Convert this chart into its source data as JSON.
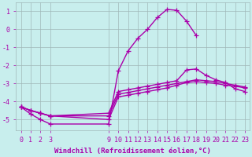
{
  "background_color": "#c8eeed",
  "grid_color": "#a0b8b8",
  "line_color": "#aa00aa",
  "xlabel": "Windchill (Refroidissement éolien,°C)",
  "xlim": [
    -0.5,
    23.5
  ],
  "ylim": [
    -5.6,
    1.5
  ],
  "yticks": [
    1,
    0,
    -1,
    -2,
    -3,
    -4,
    -5
  ],
  "xticks": [
    0,
    1,
    2,
    3,
    9,
    10,
    11,
    12,
    13,
    14,
    15,
    16,
    17,
    18,
    19,
    20,
    21,
    22,
    23
  ],
  "line_peak_x": [
    0,
    1,
    2,
    3,
    9,
    10,
    11,
    12,
    13,
    14,
    15,
    16,
    17,
    18
  ],
  "line_peak_y": [
    -4.3,
    -4.7,
    -5.0,
    -5.25,
    -5.25,
    -2.3,
    -1.2,
    -0.5,
    0.0,
    0.65,
    1.1,
    1.05,
    0.45,
    -0.35
  ],
  "line_upper_x": [
    0,
    1,
    2,
    3,
    9,
    10,
    11,
    12,
    13,
    14,
    15,
    16,
    17,
    18,
    19,
    20,
    21,
    22,
    23
  ],
  "line_upper_y": [
    -4.3,
    -4.5,
    -4.65,
    -4.8,
    -4.65,
    -3.45,
    -3.35,
    -3.25,
    -3.15,
    -3.05,
    -2.95,
    -2.85,
    -2.25,
    -2.2,
    -2.55,
    -2.8,
    -2.95,
    -3.3,
    -3.45
  ],
  "line_mid_x": [
    0,
    1,
    2,
    3,
    9,
    10,
    11,
    12,
    13,
    14,
    15,
    16,
    17,
    18,
    19,
    20,
    21,
    22,
    23
  ],
  "line_mid_y": [
    -4.3,
    -4.5,
    -4.65,
    -4.8,
    -4.8,
    -3.6,
    -3.5,
    -3.4,
    -3.3,
    -3.2,
    -3.1,
    -3.0,
    -2.9,
    -2.8,
    -2.85,
    -2.9,
    -3.0,
    -3.1,
    -3.2
  ],
  "line_lower_x": [
    0,
    1,
    2,
    3,
    9,
    10,
    11,
    12,
    13,
    14,
    15,
    16,
    17,
    18,
    19,
    20,
    21,
    22,
    23
  ],
  "line_lower_y": [
    -4.3,
    -4.5,
    -4.65,
    -4.8,
    -5.0,
    -3.75,
    -3.65,
    -3.55,
    -3.45,
    -3.35,
    -3.25,
    -3.1,
    -2.95,
    -2.9,
    -2.95,
    -3.0,
    -3.1,
    -3.15,
    -3.25
  ],
  "marker": "+",
  "markersize": 4,
  "linewidth": 1.0,
  "xlabel_fontsize": 6.5,
  "tick_fontsize": 6
}
